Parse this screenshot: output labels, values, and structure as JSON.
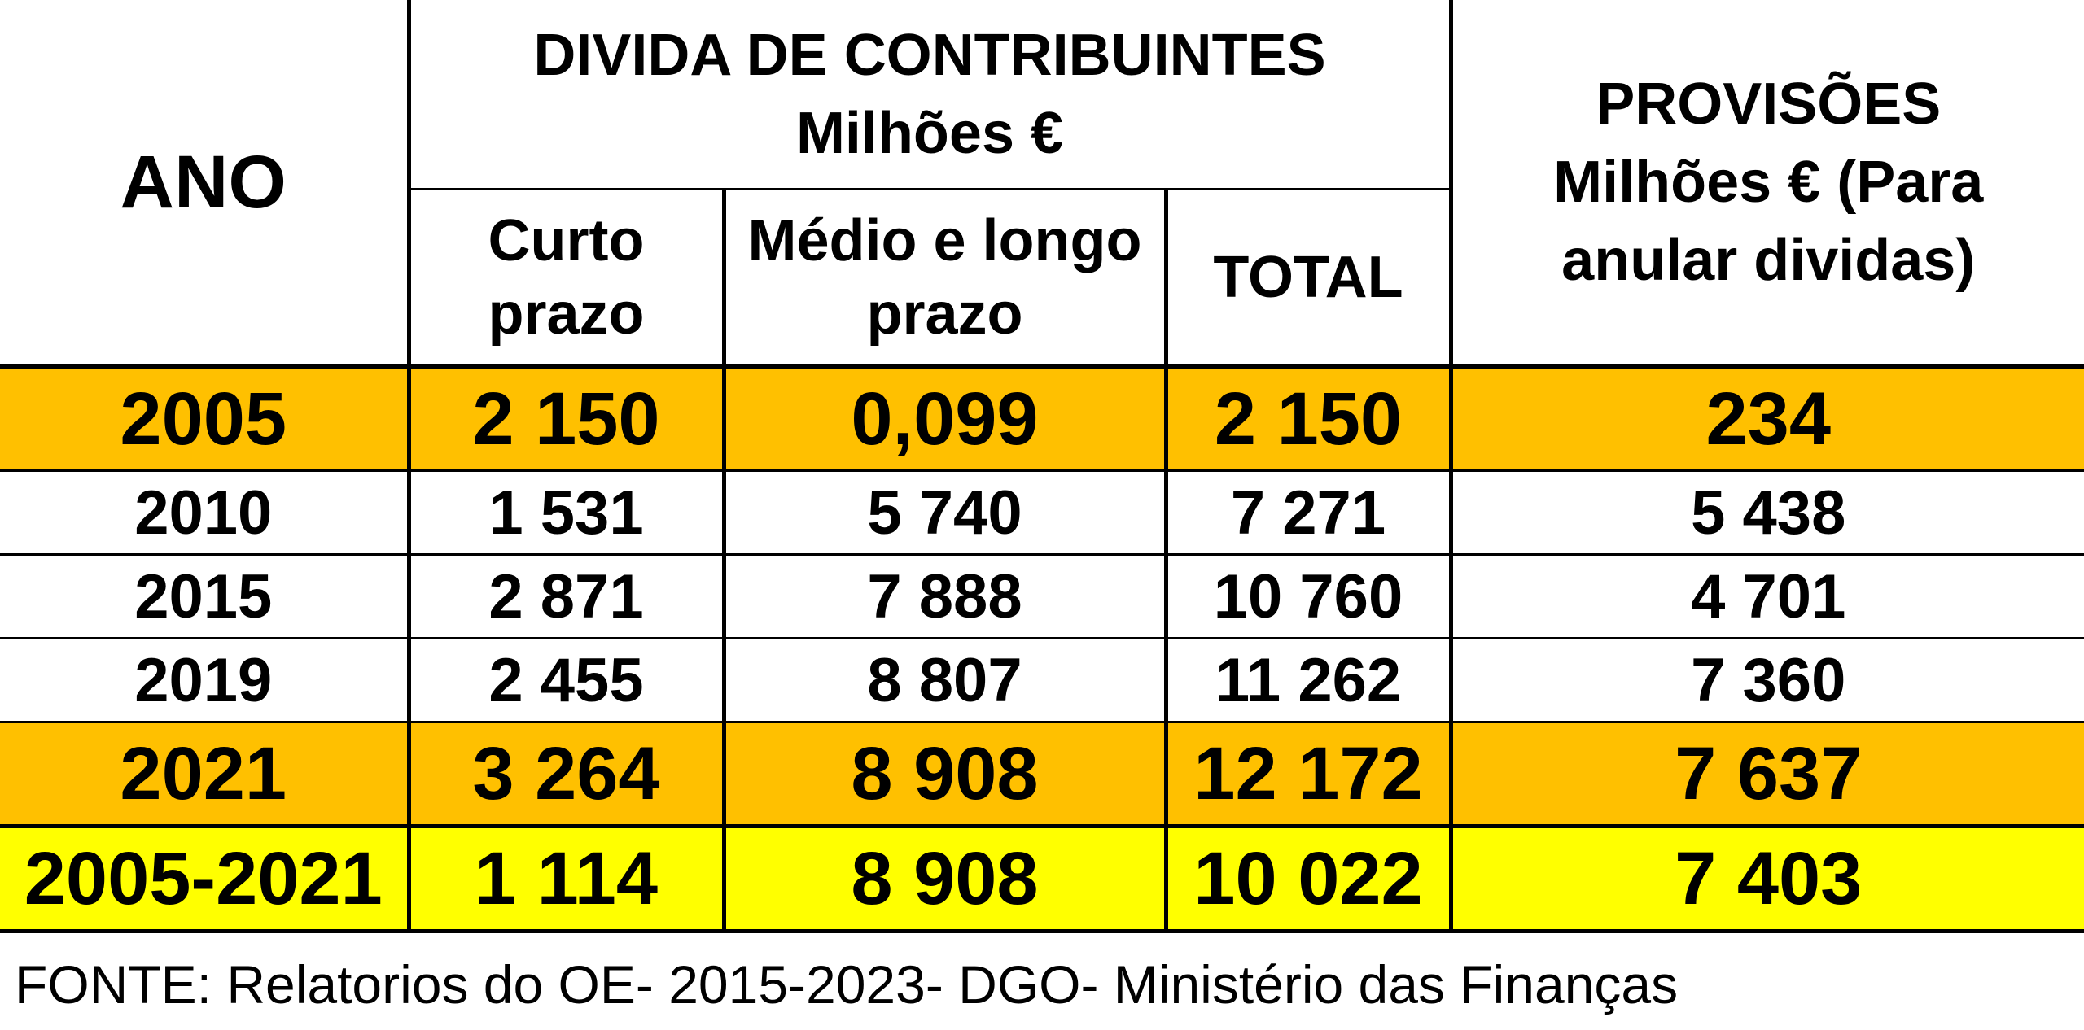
{
  "table": {
    "header": {
      "ano": "ANO",
      "group_title": "DIVIDA DE CONTRIBUINTES",
      "group_unit": "Milhões €",
      "curto_line1": "Curto",
      "curto_line2": "prazo",
      "medio_line1": "Médio e longo",
      "medio_line2": "prazo",
      "total": "TOTAL",
      "provisoes_title": "PROVISÕES",
      "provisoes_line2": "Milhões €  (Para",
      "provisoes_line3": "anular dividas)"
    },
    "rows": [
      {
        "ano": "2005",
        "curto": "2 150",
        "medio": "0,099",
        "total": "2 150",
        "provisoes": "234"
      },
      {
        "ano": "2010",
        "curto": "1 531",
        "medio": "5 740",
        "total": "7 271",
        "provisoes": "5 438"
      },
      {
        "ano": "2015",
        "curto": "2 871",
        "medio": "7 888",
        "total": "10 760",
        "provisoes": "4 701"
      },
      {
        "ano": "2019",
        "curto": "2 455",
        "medio": "8 807",
        "total": "11 262",
        "provisoes": "7 360"
      },
      {
        "ano": "2021",
        "curto": "3 264",
        "medio": "8 908",
        "total": "12 172",
        "provisoes": "7 637"
      },
      {
        "ano": "2005-2021",
        "curto": "1 114",
        "medio": "8 908",
        "total": "10 022",
        "provisoes": "7 403"
      }
    ]
  },
  "source": "FONTE: Relatorios do OE- 2015-2023- DGO- Ministério das Finanças",
  "colors": {
    "highlight_orange": "#ffc000",
    "highlight_yellow": "#ffff00",
    "text": "#000000",
    "background": "#ffffff"
  }
}
